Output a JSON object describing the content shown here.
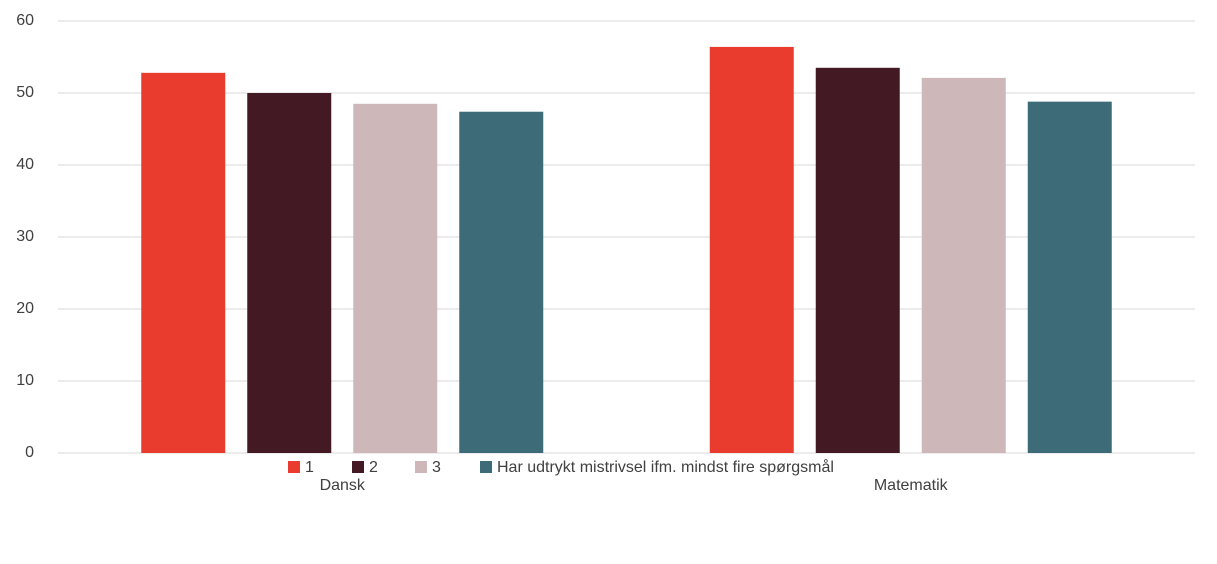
{
  "chart_data": {
    "type": "bar",
    "categories": [
      "Dansk",
      "Matematik"
    ],
    "series": [
      {
        "name": "1",
        "color": "#e93b2e",
        "values": [
          52.8,
          56.4
        ]
      },
      {
        "name": "2",
        "color": "#431a24",
        "values": [
          50.0,
          53.5
        ]
      },
      {
        "name": "3",
        "color": "#cdb7b9",
        "values": [
          48.5,
          52.1
        ]
      },
      {
        "name": "Har udtrykt mistrivsel ifm. mindst fire spørgsmål",
        "color": "#3d6c78",
        "values": [
          47.4,
          48.8
        ]
      }
    ],
    "ylim": [
      0,
      60
    ],
    "yticks": [
      0,
      10,
      20,
      30,
      40,
      50,
      60
    ],
    "grid": true,
    "legend": "bottom"
  }
}
